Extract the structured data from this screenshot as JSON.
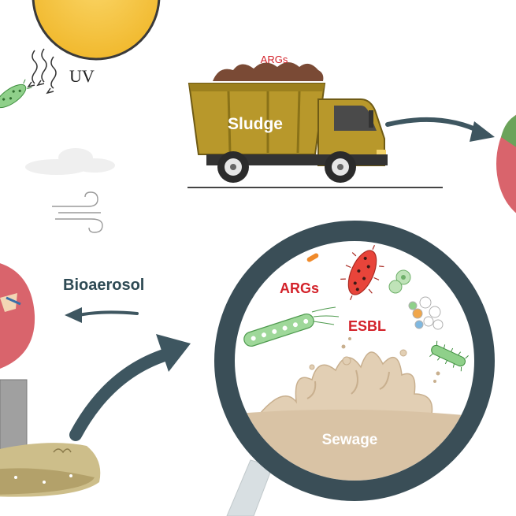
{
  "labels": {
    "uv": "UV",
    "args_truck": "ARGs",
    "sludge": "Sludge",
    "bioaerosol": "Bioaerosol",
    "args_lens": "ARGs",
    "esbl": "ESBL",
    "sewage": "Sewage"
  },
  "colors": {
    "sun": "#F5C242",
    "truck_body": "#B8982B",
    "red_text": "#D3222A",
    "dark_text": "#2E4A54",
    "lens_ring": "#3A4E57",
    "arrow": "#3E5660",
    "pink_blob": "#D9646C",
    "sewage": "#D9C3A5",
    "green_bacteria": "#8FD08A"
  }
}
